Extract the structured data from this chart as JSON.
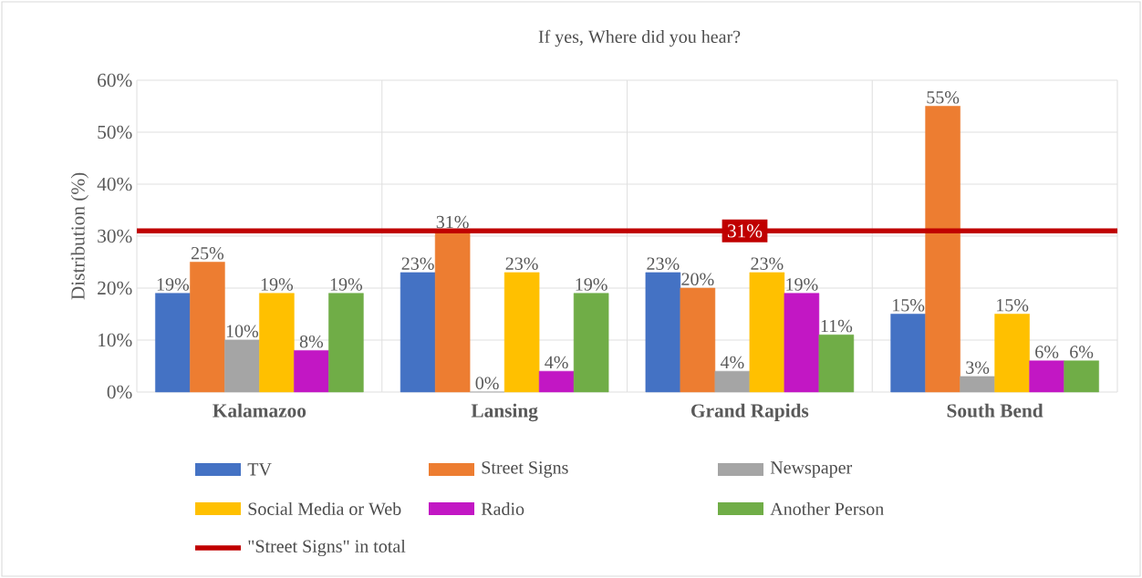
{
  "chart_data": {
    "type": "bar",
    "title": "If yes, Where did you hear?",
    "ylabel": "Distribution (%)",
    "categories": [
      "Kalamazoo",
      "Lansing",
      "Grand Rapids",
      "South Bend"
    ],
    "series": [
      {
        "name": "TV",
        "color": "#4472c4",
        "values": [
          19,
          23,
          23,
          15
        ],
        "value_labels": [
          "19%",
          "23%",
          "23%",
          "15%"
        ]
      },
      {
        "name": "Street Signs",
        "color": "#ed7d31",
        "values": [
          25,
          31,
          20,
          55
        ],
        "value_labels": [
          "25%",
          "31%",
          "20%",
          "55%"
        ]
      },
      {
        "name": "Newspaper",
        "color": "#a5a5a5",
        "values": [
          10,
          0,
          4,
          3
        ],
        "value_labels": [
          "10%",
          "0%",
          "4%",
          "3%"
        ]
      },
      {
        "name": "Social Media or Web",
        "color": "#ffc000",
        "values": [
          19,
          23,
          23,
          15
        ],
        "value_labels": [
          "19%",
          "23%",
          "23%",
          "15%"
        ]
      },
      {
        "name": "Radio",
        "color": "#c217c4",
        "values": [
          8,
          4,
          19,
          6
        ],
        "value_labels": [
          "8%",
          "4%",
          "19%",
          "6%"
        ]
      },
      {
        "name": "Another Person",
        "color": "#70ad47",
        "values": [
          19,
          19,
          11,
          6
        ],
        "value_labels": [
          "19%",
          "19%",
          "11%",
          "6%"
        ]
      }
    ],
    "ylim": [
      0,
      60
    ],
    "yticks": [
      {
        "value": 0,
        "label": "0%"
      },
      {
        "value": 10,
        "label": "10%"
      },
      {
        "value": 20,
        "label": "20%"
      },
      {
        "value": 30,
        "label": "30%"
      },
      {
        "value": 40,
        "label": "40%"
      },
      {
        "value": 50,
        "label": "50%"
      },
      {
        "value": 60,
        "label": "60%"
      }
    ],
    "ref_lines": [
      {
        "axis": "y",
        "value": 31,
        "label": "31%",
        "color": "#c00000"
      }
    ],
    "annotations": [
      "\"Street Signs\" in total"
    ],
    "grid": true,
    "legend": "bottom"
  }
}
